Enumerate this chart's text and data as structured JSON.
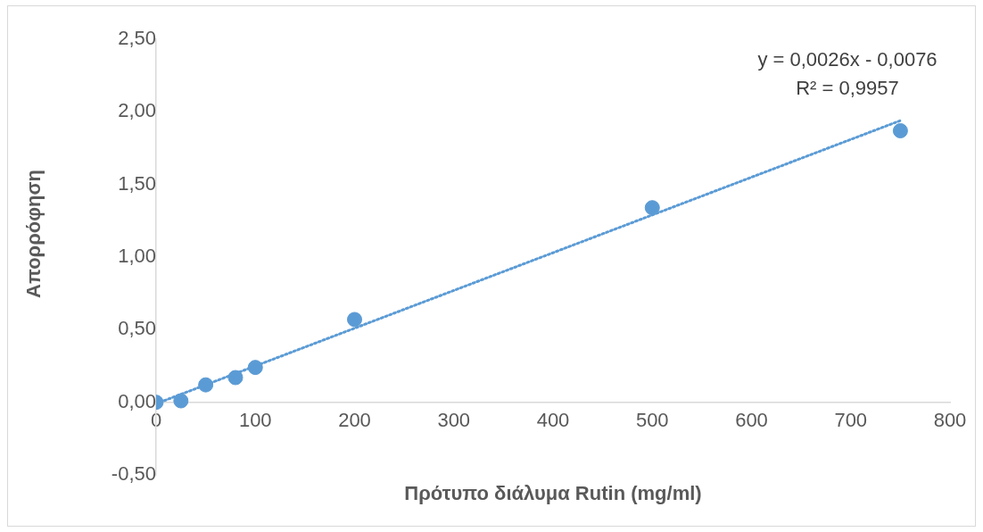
{
  "chart_data": {
    "type": "scatter",
    "xlabel": "Πρότυπο διάλυμα Rutin (mg/ml)",
    "ylabel": "Απορρόφηση",
    "annotations": [
      "y = 0,0026x - 0,0076",
      "R² = 0,9957"
    ],
    "series": [
      {
        "color": "#5b9bd5",
        "x": [
          0,
          25,
          50,
          80,
          100,
          200,
          500,
          750
        ],
        "values": [
          0,
          0.01,
          0.12,
          0.17,
          0.24,
          0.57,
          1.34,
          1.87
        ],
        "marker": "circle"
      },
      {
        "type": "line",
        "color": "#5b9bd5",
        "x": [
          0,
          750
        ],
        "values": [
          -0.01,
          1.94
        ],
        "line_style": "dotted",
        "marker": "none"
      }
    ],
    "xlim": [
      0,
      800
    ],
    "xticks": [
      0,
      100,
      200,
      300,
      400,
      500,
      600,
      700,
      800
    ],
    "ylim": [
      -0.5,
      2.5
    ],
    "yticks": [
      {
        "value": -0.5,
        "label": "-0,50"
      },
      {
        "value": 0,
        "label": "0,00"
      },
      {
        "value": 0.5,
        "label": "0,50"
      },
      {
        "value": 1,
        "label": "1,00"
      },
      {
        "value": 1.5,
        "label": "1,50"
      },
      {
        "value": 2,
        "label": "2,00"
      },
      {
        "value": 2.5,
        "label": "2,50"
      }
    ],
    "grid": false,
    "legend": false
  }
}
